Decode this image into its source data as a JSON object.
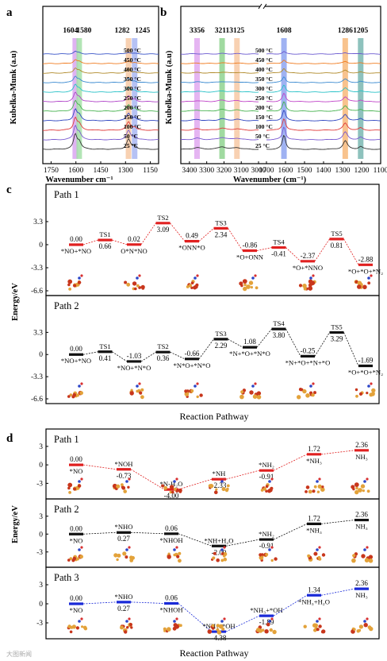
{
  "panel_letters": {
    "a": "a",
    "b": "b",
    "c": "c",
    "d": "d"
  },
  "axis_labels": {
    "a_x": "Wavenumber cm⁻¹",
    "a_y": "Kubelka-Munk (a.u)",
    "b_x": "Wavenumber (cm⁻¹)",
    "b_y": "Kubelka-Munk (a.u)",
    "c_y": "Energy/eV",
    "c_x": "Reaction Pathway",
    "d_y": "Energy/eV",
    "d_x": "Reaction Pathway"
  },
  "watermark": "大图新闻",
  "colors": {
    "path_red": "#e02020",
    "path_black": "#111111",
    "path_blue": "#1a2ad8"
  },
  "chart_data": [
    {
      "id": "a",
      "type": "line",
      "xlabel": "Wavenumber cm⁻¹",
      "ylabel": "Kubelka-Munk (a.u)",
      "xlim": [
        1800,
        1100
      ],
      "x_ticks": [
        "1750",
        "1600",
        "1450",
        "1300",
        "1150"
      ],
      "peak_labels": [
        "1604",
        "1580",
        "1282",
        "1245"
      ],
      "highlight_bands": [
        {
          "x": 1604,
          "color": "#d9a6f0"
        },
        {
          "x": 1580,
          "color": "#a4e0a8"
        },
        {
          "x": 1282,
          "color": "#f7c9a4"
        },
        {
          "x": 1245,
          "color": "#a9b7f2"
        }
      ],
      "series": [
        {
          "name": "500 °C",
          "color": "#3a55c8"
        },
        {
          "name": "450 °C",
          "color": "#f07b1f"
        },
        {
          "name": "400 °C",
          "color": "#b08a2a"
        },
        {
          "name": "350 °C",
          "color": "#3a8ad0"
        },
        {
          "name": "300 °C",
          "color": "#2ac2c8"
        },
        {
          "name": "250 °C",
          "color": "#b044c8"
        },
        {
          "name": "200 °C",
          "color": "#46b24e"
        },
        {
          "name": "150 °C",
          "color": "#2e44c0"
        },
        {
          "name": "100 °C",
          "color": "#e03a3a"
        },
        {
          "name": "50 °C",
          "color": "#7a5ad0"
        },
        {
          "name": "25 °C",
          "color": "#333333"
        }
      ]
    },
    {
      "id": "b",
      "type": "line",
      "xlabel": "Wavenumber (cm⁻¹)",
      "ylabel": "Kubelka-Munk (a.u)",
      "x_ticks": [
        "3400",
        "3300",
        "3200",
        "3100",
        "3000",
        "1700",
        "1600",
        "1500",
        "1400",
        "1300",
        "1200",
        "1100"
      ],
      "x_break": [
        3000,
        1700
      ],
      "peak_labels": [
        "3356",
        "3211",
        "3125",
        "1608",
        "1286",
        "1205"
      ],
      "highlight_bands": [
        {
          "x": 3356,
          "color": "#e1a8f0"
        },
        {
          "x": 3211,
          "color": "#8fd48f"
        },
        {
          "x": 3125,
          "color": "#f7c9a4"
        },
        {
          "x": 1608,
          "color": "#8ea4f0"
        },
        {
          "x": 1286,
          "color": "#f7b87a"
        },
        {
          "x": 1205,
          "color": "#7ab7b2"
        }
      ],
      "series": [
        {
          "name": "500 °C",
          "color": "#6b5ad0"
        },
        {
          "name": "450 °C",
          "color": "#f07b1f"
        },
        {
          "name": "400 °C",
          "color": "#b08a2a"
        },
        {
          "name": "350 °C",
          "color": "#3a8ad0"
        },
        {
          "name": "300 °C",
          "color": "#2ac2c8"
        },
        {
          "name": "250 °C",
          "color": "#c044c8"
        },
        {
          "name": "200 °C",
          "color": "#46b24e"
        },
        {
          "name": "150 °C",
          "color": "#2e44c0"
        },
        {
          "name": "100 °C",
          "color": "#e03a3a"
        },
        {
          "name": "50 °C",
          "color": "#7a5ad0"
        },
        {
          "name": "25 °C",
          "color": "#333333"
        }
      ]
    },
    {
      "id": "c",
      "type": "line",
      "xlabel": "Reaction Pathway",
      "ylabel": "Energy/eV",
      "ylim": [
        -6.6,
        5.0
      ],
      "y_ticks": [
        "3.3",
        "0",
        "-3.3",
        "-6.6"
      ],
      "paths": [
        {
          "name": "Path 1",
          "color": "#e02020",
          "states": [
            {
              "energy": 0.0,
              "label": "0.00",
              "species": "*NO+*NO"
            },
            {
              "energy": 0.66,
              "label": "0.66",
              "species": "TS1"
            },
            {
              "energy": 0.02,
              "label": "0.02",
              "species": "O*N*NO"
            },
            {
              "energy": 3.09,
              "label": "3.09",
              "species": "TS2"
            },
            {
              "energy": 0.49,
              "label": "0.49",
              "species": "*ONN*O"
            },
            {
              "energy": 2.34,
              "label": "2.34",
              "species": "TS3"
            },
            {
              "energy": -0.86,
              "label": "-0.86",
              "species": "*O+ONN"
            },
            {
              "energy": -0.41,
              "label": "-0.41",
              "species": "TS4"
            },
            {
              "energy": -2.37,
              "label": "-2.37",
              "species": "*O+*NNO"
            },
            {
              "energy": 0.81,
              "label": "0.81",
              "species": "TS5"
            },
            {
              "energy": -2.88,
              "label": "-2.88",
              "species": "*O+*O+*N₂"
            }
          ]
        },
        {
          "name": "Path 2",
          "color": "#111111",
          "states": [
            {
              "energy": 0.0,
              "label": "0.00",
              "species": "*NO+*NO"
            },
            {
              "energy": 0.41,
              "label": "0.41",
              "species": "TS1"
            },
            {
              "energy": -1.03,
              "label": "-1.03",
              "species": "*NO+*N*O"
            },
            {
              "energy": 0.36,
              "label": "0.36",
              "species": "TS2"
            },
            {
              "energy": -0.66,
              "label": "-0.66",
              "species": "*N*O+*N*O"
            },
            {
              "energy": 2.29,
              "label": "2.29",
              "species": "TS3"
            },
            {
              "energy": 1.08,
              "label": "1.08",
              "species": "*N+*O+*N*O"
            },
            {
              "energy": 3.8,
              "label": "3.80",
              "species": "TS4"
            },
            {
              "energy": -0.25,
              "label": "-0.25",
              "species": "*N+*O+*N+*O"
            },
            {
              "energy": 3.29,
              "label": "3.29",
              "species": "TS5"
            },
            {
              "energy": -1.69,
              "label": "-1.69",
              "species": "*O+*O+*N₂"
            }
          ]
        }
      ]
    },
    {
      "id": "d",
      "type": "line",
      "xlabel": "Reaction Pathway",
      "ylabel": "Energy/eV",
      "ylim": [
        -4.5,
        3.5
      ],
      "y_ticks": [
        "3",
        "0",
        "-3"
      ],
      "paths": [
        {
          "name": "Path 1",
          "color": "#e02020",
          "states": [
            {
              "energy": 0.0,
              "label": "0.00",
              "species": "*NO"
            },
            {
              "energy": -0.73,
              "label": "-0.73",
              "species": "*NOH"
            },
            {
              "energy": -4.0,
              "label": "-4.00",
              "species": "*N-H₂O"
            },
            {
              "energy": -2.33,
              "label": "-2.33",
              "species": "*NH"
            },
            {
              "energy": -0.91,
              "label": "-0.91",
              "species": "*NH₂"
            },
            {
              "energy": 1.72,
              "label": "1.72",
              "species": "*NH₃"
            },
            {
              "energy": 2.36,
              "label": "2.36",
              "species": "NH₃"
            }
          ]
        },
        {
          "name": "Path 2",
          "color": "#111111",
          "states": [
            {
              "energy": 0.0,
              "label": "0.00",
              "species": "*NO"
            },
            {
              "energy": 0.27,
              "label": "0.27",
              "species": "*NHO"
            },
            {
              "energy": 0.06,
              "label": "0.06",
              "species": "*NHOH"
            },
            {
              "energy": -2.0,
              "label": "-2.00",
              "species": "*NH+H₂O"
            },
            {
              "energy": -0.91,
              "label": "-0.91",
              "species": "*NH₂"
            },
            {
              "energy": 1.72,
              "label": "1.72",
              "species": "*NH₃"
            },
            {
              "energy": 2.36,
              "label": "2.36",
              "species": "NH₃"
            }
          ]
        },
        {
          "name": "Path 3",
          "color": "#1a2ad8",
          "states": [
            {
              "energy": 0.0,
              "label": "0.00",
              "species": "*NO"
            },
            {
              "energy": 0.27,
              "label": "0.27",
              "species": "*NHO"
            },
            {
              "energy": 0.06,
              "label": "0.06",
              "species": "*NHOH"
            },
            {
              "energy": -4.38,
              "label": "-4.38",
              "species": "*NH₂+*OH"
            },
            {
              "energy": -1.89,
              "label": "-1.89",
              "species": "*NH₃+*OH"
            },
            {
              "energy": 1.34,
              "label": "1.34",
              "species": "*NH₃+H₂O"
            },
            {
              "energy": 2.36,
              "label": "2.36",
              "species": "NH₃"
            }
          ]
        }
      ]
    }
  ]
}
